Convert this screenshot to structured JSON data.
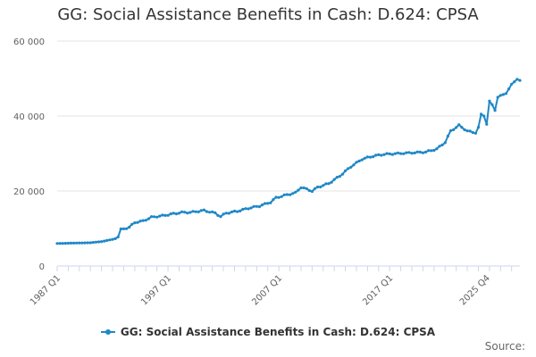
{
  "colors": {
    "series": "#1f88c7",
    "grid": "#e6e6e6",
    "axis": "#ccd6eb"
  },
  "source_label": "Source:",
  "chart_data": {
    "type": "line",
    "title": "GG: Social Assistance Benefits in Cash: D.624: CPSA",
    "xlabel": "",
    "ylabel": "",
    "ylim": [
      0,
      60000
    ],
    "y_ticks": [
      0,
      20000,
      40000,
      60000
    ],
    "y_tick_labels": [
      "0",
      "20 000",
      "40 000",
      "60 000"
    ],
    "x_tick_labels": [
      "1987 Q1",
      "1997 Q1",
      "2007 Q1",
      "2017 Q1",
      "2025 Q4"
    ],
    "x_tick_positions": [
      0,
      40,
      80,
      120,
      155
    ],
    "grid": true,
    "legend": "bottom-center",
    "series": [
      {
        "name": "GG: Social Assistance Benefits in Cash: D.624: CPSA",
        "anchors": [
          [
            0,
            6000
          ],
          [
            6,
            6100
          ],
          [
            12,
            6200
          ],
          [
            16,
            6500
          ],
          [
            20,
            7100
          ],
          [
            22,
            7800
          ],
          [
            23,
            9700
          ],
          [
            26,
            10300
          ],
          [
            28,
            11600
          ],
          [
            31,
            12000
          ],
          [
            34,
            13000
          ],
          [
            38,
            13400
          ],
          [
            41,
            13800
          ],
          [
            45,
            14300
          ],
          [
            48,
            14300
          ],
          [
            53,
            14800
          ],
          [
            57,
            14100
          ],
          [
            59,
            13200
          ],
          [
            61,
            14100
          ],
          [
            65,
            14600
          ],
          [
            69,
            15400
          ],
          [
            73,
            16000
          ],
          [
            77,
            17000
          ],
          [
            79,
            18200
          ],
          [
            83,
            19000
          ],
          [
            86,
            19500
          ],
          [
            88,
            21000
          ],
          [
            92,
            20000
          ],
          [
            94,
            21000
          ],
          [
            98,
            22000
          ],
          [
            102,
            24000
          ],
          [
            106,
            26500
          ],
          [
            110,
            28500
          ],
          [
            114,
            29300
          ],
          [
            118,
            29800
          ],
          [
            123,
            30000
          ],
          [
            128,
            30200
          ],
          [
            133,
            30400
          ],
          [
            137,
            31200
          ],
          [
            140,
            33000
          ],
          [
            142,
            36000
          ],
          [
            145,
            37500
          ],
          [
            148,
            36000
          ],
          [
            151,
            35400
          ],
          [
            152,
            37000
          ],
          [
            153,
            40500
          ],
          [
            154,
            40000
          ],
          [
            155,
            37800
          ],
          [
            156,
            44000
          ],
          [
            157,
            43000
          ],
          [
            158,
            41500
          ],
          [
            159,
            45000
          ],
          [
            160,
            45500
          ],
          [
            162,
            46000
          ],
          [
            164,
            48500
          ],
          [
            166,
            49800
          ],
          [
            167,
            49500
          ]
        ]
      }
    ]
  }
}
